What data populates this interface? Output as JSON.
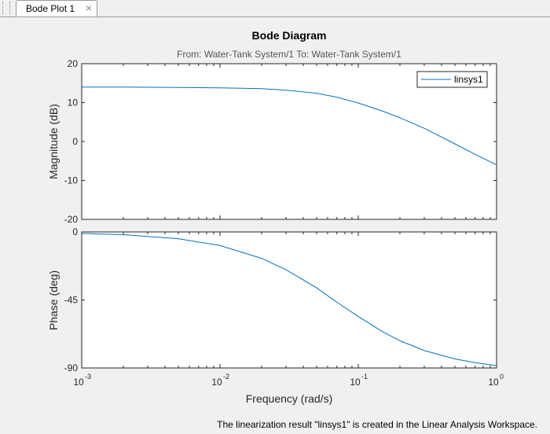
{
  "tab": {
    "label": "Bode Plot 1",
    "close_glyph": "×",
    "close_icon": "close-icon"
  },
  "status_message": "The linearization result \"linsys1\" is created in the Linear Analysis Workspace.",
  "chart_data": {
    "type": "line",
    "title": "Bode Diagram",
    "subtitle": "From: Water-Tank System/1  To: Water-Tank System/1",
    "xlabel": "Frequency  (rad/s)",
    "xscale": "log",
    "xlim": [
      0.001,
      1
    ],
    "x_ticks": [
      {
        "value": 0.001,
        "base": "10",
        "exp": "-3"
      },
      {
        "value": 0.01,
        "base": "10",
        "exp": "-2"
      },
      {
        "value": 0.1,
        "base": "10",
        "exp": "-1"
      },
      {
        "value": 1,
        "base": "10",
        "exp": "0"
      }
    ],
    "grid": false,
    "legend": {
      "entries": [
        "linsys1"
      ],
      "placement": "top-right"
    },
    "series_color": "#0072bd",
    "panels": [
      {
        "name": "magnitude",
        "ylabel": "Magnitude (dB)",
        "ylim": [
          -20,
          20
        ],
        "yticks": [
          "20",
          "10",
          "0",
          "-10",
          "-20"
        ],
        "ytick_values": [
          20,
          10,
          0,
          -10,
          -20
        ]
      },
      {
        "name": "phase",
        "ylabel": "Phase (deg)",
        "ylim": [
          -90,
          0
        ],
        "yticks": [
          "0",
          "-45",
          "-90"
        ],
        "ytick_values": [
          0,
          -45,
          -90
        ]
      }
    ],
    "series": [
      {
        "name": "linsys1",
        "x": [
          0.001,
          0.002,
          0.005,
          0.01,
          0.02,
          0.03,
          0.05,
          0.07,
          0.1,
          0.15,
          0.2,
          0.3,
          0.5,
          0.7,
          1.0
        ],
        "magnitude_db": [
          14.0,
          14.0,
          13.9,
          13.8,
          13.6,
          13.2,
          12.4,
          11.4,
          9.9,
          7.8,
          6.1,
          3.4,
          -0.6,
          -3.3,
          -6.0
        ],
        "phase_deg": [
          -1.0,
          -1.8,
          -4.5,
          -9.0,
          -17.5,
          -25.0,
          -37.0,
          -46.5,
          -56.0,
          -66.0,
          -72.0,
          -78.5,
          -84.0,
          -86.5,
          -88.5
        ]
      }
    ]
  }
}
